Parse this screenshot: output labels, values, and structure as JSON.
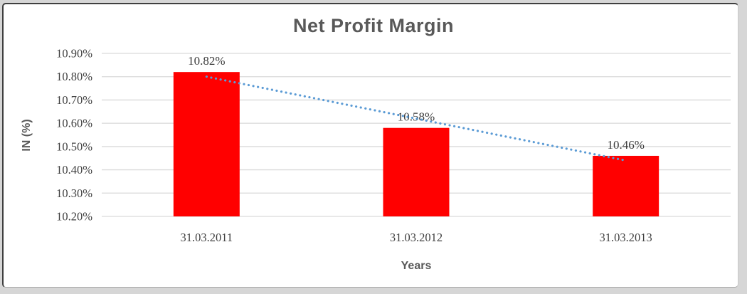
{
  "chart_data": {
    "type": "bar",
    "title": "Net Profit Margin",
    "xlabel": "Years",
    "ylabel": "IN (%)",
    "categories": [
      "31.03.2011",
      "31.03.2012",
      "31.03.2013"
    ],
    "series": [
      {
        "name": "Net Profit Margin",
        "values": [
          10.82,
          10.58,
          10.46
        ],
        "data_labels": [
          "10.82%",
          "10.58%",
          "10.46%"
        ],
        "color": "#FF0000"
      }
    ],
    "ylim": [
      10.2,
      10.9
    ],
    "y_ticks": [
      {
        "label": "10.20%",
        "value": 10.2
      },
      {
        "label": "10.30%",
        "value": 10.3
      },
      {
        "label": "10.40%",
        "value": 10.4
      },
      {
        "label": "10.50%",
        "value": 10.5
      },
      {
        "label": "10.60%",
        "value": 10.6
      },
      {
        "label": "10.70%",
        "value": 10.7
      },
      {
        "label": "10.80%",
        "value": 10.8
      },
      {
        "label": "10.90%",
        "value": 10.9
      }
    ],
    "grid": true,
    "legend": "none",
    "trendline": {
      "type": "linear",
      "style": "dotted",
      "color": "#5B9BD5"
    },
    "colors": {
      "bar": "#FF0000",
      "gridline": "#D9D9D9",
      "title": "#595959",
      "axis_title": "#595959",
      "tick_label": "#404040",
      "data_label": "#3b3b3b"
    }
  }
}
